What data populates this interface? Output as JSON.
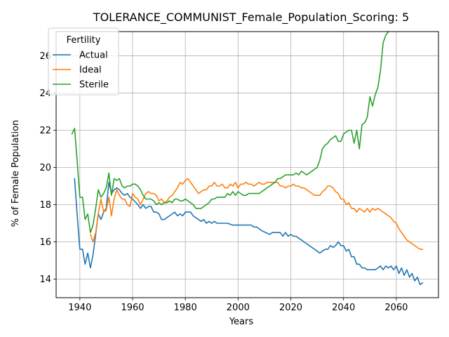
{
  "chart_data": {
    "type": "line",
    "title": "TOLERANCE_COMMUNIST_Female_Population_Scoring: 5",
    "xlabel": "Years",
    "ylabel": "% of Female Population",
    "xlim": [
      1931,
      2076
    ],
    "ylim": [
      13.0,
      27.3
    ],
    "xticks": [
      1940,
      1960,
      1980,
      2000,
      2020,
      2040,
      2060
    ],
    "yticks": [
      14,
      16,
      18,
      20,
      22,
      24,
      26
    ],
    "grid": true,
    "legend": {
      "title": "Fertility",
      "position": "top-left"
    },
    "series": [
      {
        "name": "Actual",
        "color": "#1f77b4",
        "x": [
          1938,
          1939,
          1940,
          1941,
          1942,
          1943,
          1944,
          1945,
          1946,
          1947,
          1948,
          1949,
          1950,
          1951,
          1952,
          1953,
          1954,
          1955,
          1956,
          1957,
          1958,
          1959,
          1960,
          1962,
          1963,
          1964,
          1965,
          1966,
          1967,
          1968,
          1969,
          1970,
          1971,
          1972,
          1974,
          1976,
          1977,
          1978,
          1979,
          1980,
          1981,
          1982,
          1983,
          1984,
          1985,
          1986,
          1987,
          1988,
          1989,
          1990,
          1991,
          1992,
          1994,
          1996,
          1998,
          1999,
          2000,
          2002,
          2003,
          2004,
          2005,
          2006,
          2007,
          2008,
          2009,
          2012,
          2013,
          2016,
          2017,
          2018,
          2019,
          2020,
          2021,
          2022,
          2023,
          2024,
          2025,
          2026,
          2027,
          2028,
          2030,
          2031,
          2032,
          2033,
          2034,
          2035,
          2036,
          2037,
          2038,
          2039,
          2040,
          2041,
          2042,
          2043,
          2044,
          2045,
          2046,
          2047,
          2048,
          2049,
          2050,
          2051,
          2052,
          2053,
          2054,
          2055,
          2056,
          2057,
          2058,
          2059,
          2060,
          2061,
          2062,
          2063,
          2064,
          2065,
          2066,
          2067,
          2068,
          2069,
          2070
        ],
        "values": [
          19.4,
          17.4,
          15.6,
          15.6,
          14.8,
          15.4,
          14.6,
          15.3,
          16.4,
          17.5,
          17.2,
          17.6,
          17.8,
          19.2,
          18.6,
          18.8,
          18.9,
          18.8,
          18.6,
          18.5,
          18.6,
          18.4,
          18.3,
          18.0,
          17.8,
          18.0,
          17.8,
          17.9,
          17.9,
          17.6,
          17.6,
          17.5,
          17.2,
          17.2,
          17.4,
          17.6,
          17.4,
          17.5,
          17.4,
          17.6,
          17.6,
          17.6,
          17.4,
          17.3,
          17.2,
          17.1,
          17.2,
          17.0,
          17.1,
          17.0,
          17.1,
          17.0,
          17.0,
          17.0,
          16.9,
          16.9,
          16.9,
          16.9,
          16.9,
          16.9,
          16.9,
          16.8,
          16.8,
          16.7,
          16.6,
          16.4,
          16.5,
          16.5,
          16.3,
          16.5,
          16.3,
          16.4,
          16.3,
          16.3,
          16.2,
          16.1,
          16.0,
          15.9,
          15.8,
          15.7,
          15.5,
          15.4,
          15.5,
          15.6,
          15.6,
          15.8,
          15.7,
          15.8,
          16.0,
          15.8,
          15.8,
          15.5,
          15.6,
          15.2,
          15.2,
          14.8,
          14.8,
          14.6,
          14.6,
          14.5,
          14.5,
          14.5,
          14.5,
          14.6,
          14.7,
          14.5,
          14.7,
          14.6,
          14.7,
          14.5,
          14.7,
          14.3,
          14.6,
          14.2,
          14.5,
          14.1,
          14.3,
          13.9,
          14.1,
          13.7,
          13.8
        ]
      },
      {
        "name": "Ideal",
        "color": "#ff7f0e",
        "x": [
          1944,
          1945,
          1946,
          1947,
          1948,
          1949,
          1950,
          1951,
          1952,
          1953,
          1954,
          1955,
          1956,
          1957,
          1958,
          1959,
          1960,
          1961,
          1962,
          1963,
          1964,
          1965,
          1966,
          1967,
          1968,
          1969,
          1970,
          1971,
          1972,
          1973,
          1974,
          1975,
          1976,
          1977,
          1978,
          1979,
          1980,
          1981,
          1982,
          1983,
          1984,
          1985,
          1986,
          1987,
          1988,
          1989,
          1990,
          1991,
          1992,
          1993,
          1994,
          1995,
          1996,
          1997,
          1998,
          1999,
          2000,
          2001,
          2002,
          2003,
          2004,
          2005,
          2006,
          2007,
          2008,
          2009,
          2010,
          2011,
          2012,
          2013,
          2014,
          2015,
          2016,
          2017,
          2018,
          2019,
          2020,
          2021,
          2022,
          2023,
          2024,
          2025,
          2026,
          2027,
          2028,
          2029,
          2030,
          2031,
          2032,
          2033,
          2034,
          2035,
          2036,
          2037,
          2038,
          2039,
          2040,
          2041,
          2042,
          2043,
          2044,
          2045,
          2046,
          2047,
          2048,
          2049,
          2050,
          2051,
          2052,
          2053,
          2054,
          2055,
          2056,
          2057,
          2058,
          2059,
          2060,
          2061,
          2062,
          2063,
          2064,
          2065,
          2066,
          2067,
          2068,
          2069,
          2070
        ],
        "values": [
          16.4,
          16.0,
          16.5,
          17.5,
          18.3,
          17.6,
          17.7,
          18.4,
          17.4,
          18.3,
          18.8,
          18.5,
          18.3,
          18.3,
          18.0,
          17.9,
          18.6,
          18.4,
          18.3,
          18.0,
          18.3,
          18.6,
          18.7,
          18.6,
          18.6,
          18.5,
          18.2,
          18.3,
          18.1,
          18.2,
          18.4,
          18.5,
          18.7,
          18.9,
          19.2,
          19.1,
          19.3,
          19.4,
          19.2,
          19.0,
          18.8,
          18.6,
          18.7,
          18.8,
          18.8,
          19.0,
          19.0,
          19.2,
          19.0,
          19.0,
          19.1,
          18.9,
          18.9,
          19.1,
          19.0,
          19.2,
          18.9,
          19.1,
          19.1,
          19.2,
          19.1,
          19.1,
          19.0,
          19.1,
          19.2,
          19.1,
          19.1,
          19.2,
          19.2,
          19.2,
          19.2,
          19.2,
          19.0,
          19.0,
          18.9,
          19.0,
          19.0,
          19.1,
          19.0,
          19.0,
          18.9,
          18.9,
          18.8,
          18.7,
          18.6,
          18.5,
          18.5,
          18.5,
          18.7,
          18.8,
          19.0,
          19.0,
          18.9,
          18.7,
          18.6,
          18.3,
          18.3,
          18.0,
          18.1,
          17.8,
          17.8,
          17.6,
          17.8,
          17.7,
          17.6,
          17.8,
          17.6,
          17.8,
          17.7,
          17.8,
          17.7,
          17.6,
          17.5,
          17.4,
          17.3,
          17.1,
          17.0,
          16.7,
          16.5,
          16.3,
          16.1,
          16.0,
          15.9,
          15.8,
          15.7,
          15.6,
          15.6
        ]
      },
      {
        "name": "Sterile",
        "color": "#2ca02c",
        "x": [
          1937,
          1938,
          1939,
          1940,
          1941,
          1942,
          1943,
          1944,
          1945,
          1946,
          1947,
          1948,
          1949,
          1950,
          1951,
          1952,
          1953,
          1954,
          1955,
          1956,
          1957,
          1958,
          1959,
          1960,
          1961,
          1962,
          1963,
          1964,
          1965,
          1966,
          1967,
          1968,
          1969,
          1970,
          1971,
          1972,
          1973,
          1974,
          1975,
          1976,
          1977,
          1978,
          1979,
          1980,
          1981,
          1982,
          1983,
          1984,
          1985,
          1986,
          1987,
          1988,
          1989,
          1990,
          1991,
          1992,
          1993,
          1994,
          1995,
          1996,
          1997,
          1998,
          1999,
          2000,
          2001,
          2002,
          2003,
          2004,
          2005,
          2006,
          2007,
          2008,
          2009,
          2010,
          2011,
          2012,
          2013,
          2014,
          2015,
          2016,
          2017,
          2018,
          2019,
          2020,
          2021,
          2022,
          2023,
          2024,
          2025,
          2026,
          2027,
          2028,
          2029,
          2030,
          2031,
          2032,
          2033,
          2034,
          2035,
          2036,
          2037,
          2038,
          2039,
          2040,
          2041,
          2042,
          2043,
          2044,
          2045,
          2046,
          2047,
          2048,
          2049,
          2050,
          2051,
          2052,
          2053,
          2054,
          2055,
          2056,
          2057
        ],
        "values": [
          21.8,
          22.1,
          20.3,
          18.4,
          18.4,
          17.2,
          17.5,
          16.5,
          16.9,
          17.8,
          18.8,
          18.4,
          18.6,
          18.9,
          19.7,
          18.5,
          19.4,
          19.3,
          19.4,
          19.0,
          18.9,
          19.0,
          19.0,
          19.1,
          19.1,
          19.0,
          18.8,
          18.5,
          18.3,
          18.3,
          18.3,
          18.2,
          18.0,
          18.1,
          18.0,
          18.1,
          18.1,
          18.2,
          18.1,
          18.3,
          18.3,
          18.2,
          18.2,
          18.3,
          18.2,
          18.1,
          18.0,
          17.8,
          17.8,
          17.8,
          17.9,
          18.0,
          18.1,
          18.3,
          18.3,
          18.4,
          18.4,
          18.4,
          18.4,
          18.6,
          18.5,
          18.7,
          18.5,
          18.7,
          18.6,
          18.5,
          18.5,
          18.6,
          18.6,
          18.6,
          18.6,
          18.6,
          18.7,
          18.8,
          18.9,
          19.0,
          19.1,
          19.2,
          19.4,
          19.4,
          19.5,
          19.6,
          19.6,
          19.6,
          19.6,
          19.7,
          19.6,
          19.8,
          19.7,
          19.6,
          19.7,
          19.8,
          19.9,
          20.0,
          20.4,
          21.0,
          21.2,
          21.3,
          21.5,
          21.6,
          21.7,
          21.4,
          21.4,
          21.8,
          21.9,
          22.0,
          22.0,
          21.3,
          22.0,
          21.0,
          22.3,
          22.4,
          22.7,
          23.8,
          23.3,
          23.9,
          24.3,
          25.2,
          26.7,
          27.1,
          27.3
        ]
      }
    ]
  }
}
